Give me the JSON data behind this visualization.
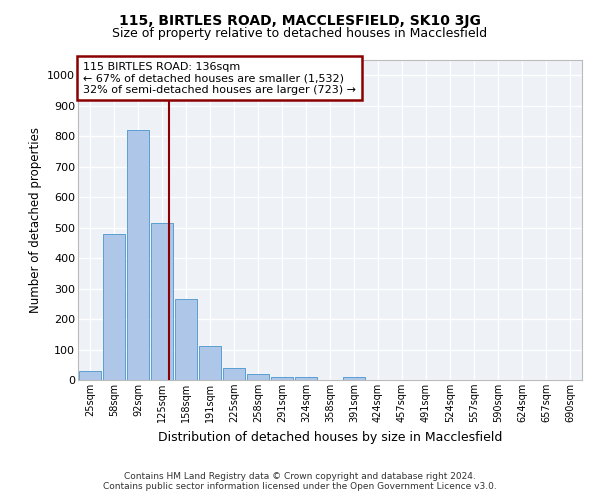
{
  "title1": "115, BIRTLES ROAD, MACCLESFIELD, SK10 3JG",
  "title2": "Size of property relative to detached houses in Macclesfield",
  "xlabel": "Distribution of detached houses by size in Macclesfield",
  "ylabel": "Number of detached properties",
  "categories": [
    "25sqm",
    "58sqm",
    "92sqm",
    "125sqm",
    "158sqm",
    "191sqm",
    "225sqm",
    "258sqm",
    "291sqm",
    "324sqm",
    "358sqm",
    "391sqm",
    "424sqm",
    "457sqm",
    "491sqm",
    "524sqm",
    "557sqm",
    "590sqm",
    "624sqm",
    "657sqm",
    "690sqm"
  ],
  "values": [
    30,
    480,
    820,
    515,
    265,
    110,
    38,
    20,
    10,
    10,
    0,
    10,
    0,
    0,
    0,
    0,
    0,
    0,
    0,
    0,
    0
  ],
  "bar_color": "#aec6e8",
  "bar_edge_color": "#5a9fd4",
  "ylim": [
    0,
    1050
  ],
  "yticks": [
    0,
    100,
    200,
    300,
    400,
    500,
    600,
    700,
    800,
    900,
    1000
  ],
  "red_line_x": 3.3,
  "annotation_title": "115 BIRTLES ROAD: 136sqm",
  "annotation_line1": "← 67% of detached houses are smaller (1,532)",
  "annotation_line2": "32% of semi-detached houses are larger (723) →",
  "plot_bg_color": "#eef2f7",
  "footer1": "Contains HM Land Registry data © Crown copyright and database right 2024.",
  "footer2": "Contains public sector information licensed under the Open Government Licence v3.0."
}
